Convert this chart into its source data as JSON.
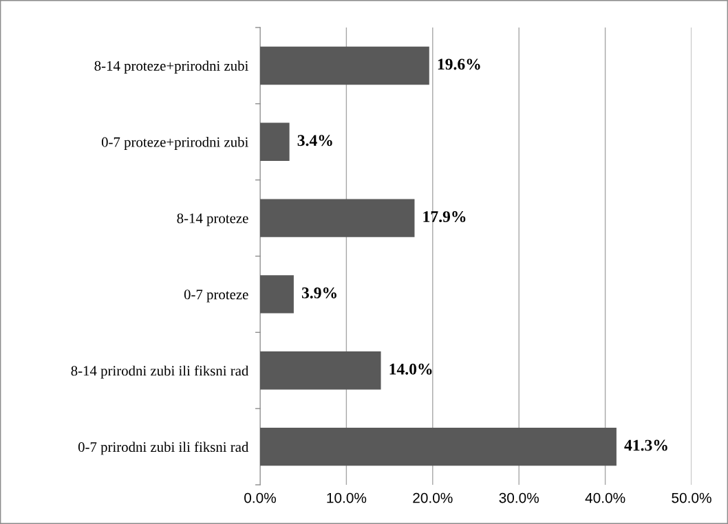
{
  "chart_data": {
    "type": "bar",
    "orientation": "horizontal",
    "categories": [
      "8-14 proteze+prirodni zubi",
      "0-7 proteze+prirodni zubi",
      "8-14 proteze",
      "0-7 proteze",
      "8-14 prirodni zubi ili fiksni rad",
      "0-7 prirodni zubi ili fiksni rad"
    ],
    "values": [
      19.6,
      3.4,
      17.9,
      3.9,
      14.0,
      41.3
    ],
    "value_labels": [
      "19.6%",
      "3.4%",
      "17.9%",
      "3.9%",
      "14.0%",
      "41.3%"
    ],
    "color": "#595959",
    "xlim": [
      0,
      50
    ],
    "xticks": [
      {
        "value": 0,
        "label": "0.0%"
      },
      {
        "value": 10,
        "label": "10.0%"
      },
      {
        "value": 20,
        "label": "20.0%"
      },
      {
        "value": 30,
        "label": "30.0%"
      },
      {
        "value": 40,
        "label": "40.0%"
      },
      {
        "value": 50,
        "label": "50.0%"
      }
    ],
    "grid": "x",
    "legend": false
  }
}
